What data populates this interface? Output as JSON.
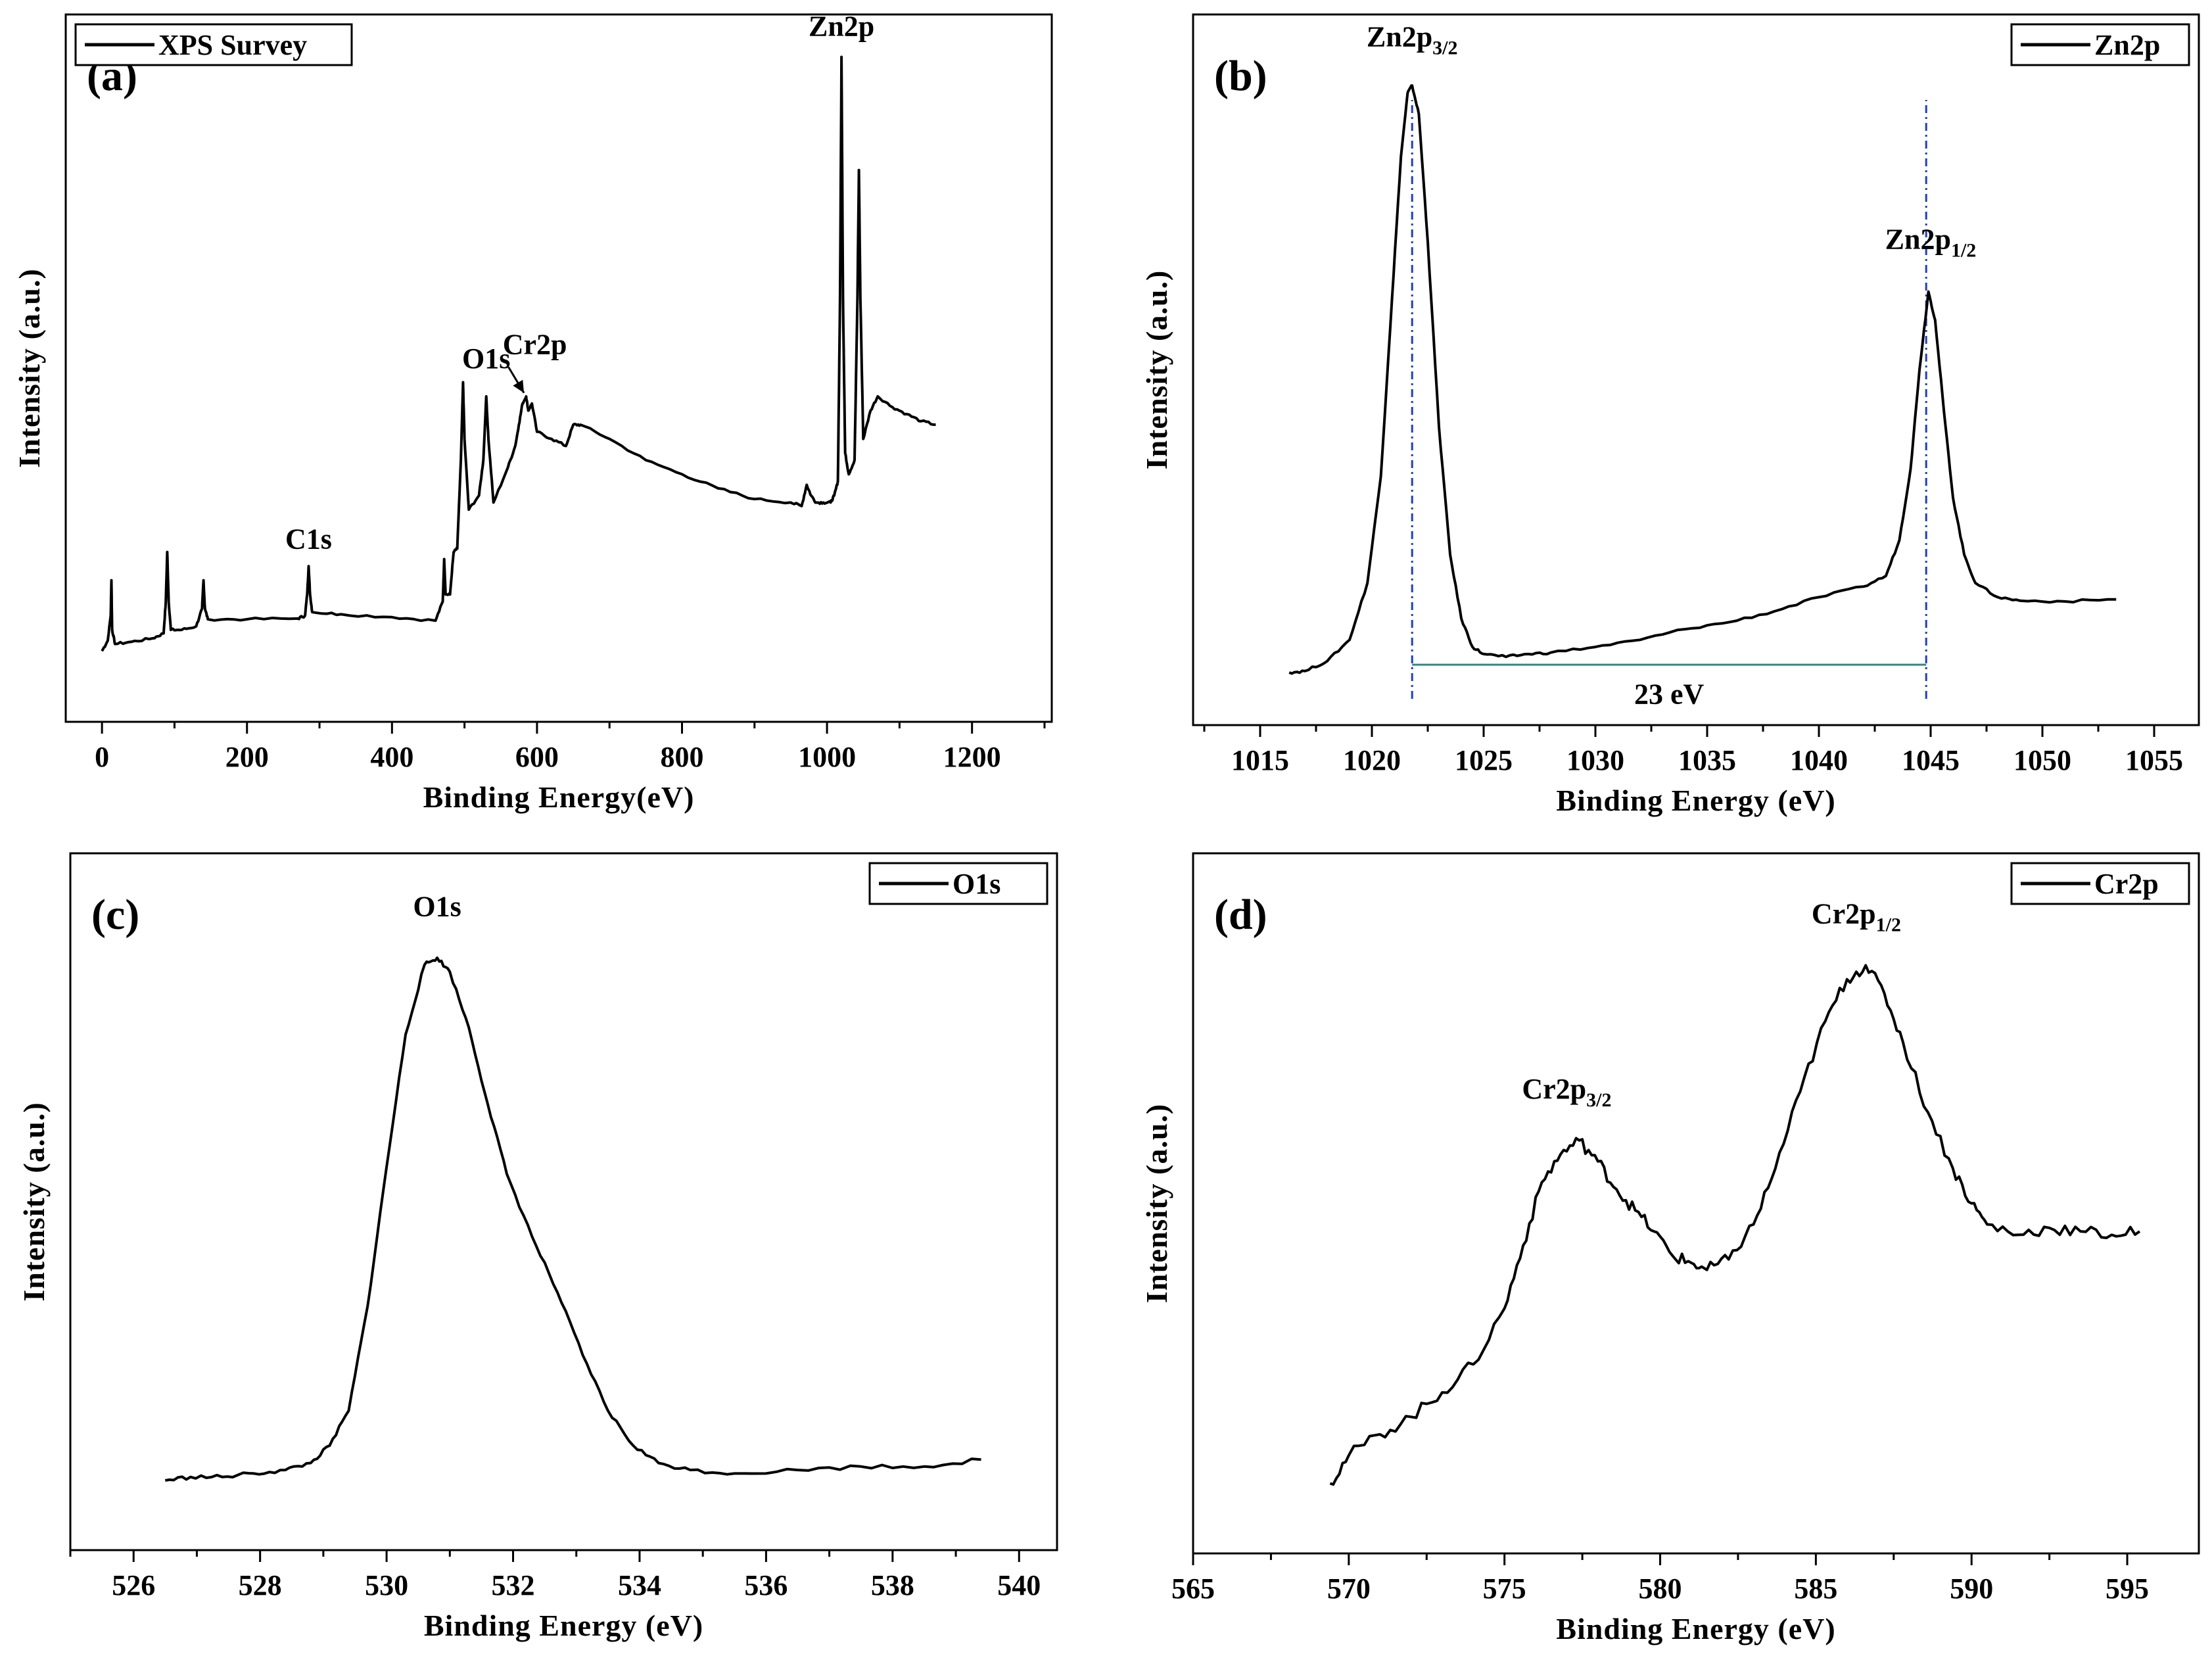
{
  "chart_data": [
    {
      "id": "a",
      "type": "line",
      "panel_label": "(a)",
      "title": "",
      "xlabel": "Binding Energy(eV)",
      "ylabel": "Intensity (a.u.)",
      "xlim": [
        -50,
        1310
      ],
      "ylim": [
        0,
        100
      ],
      "xticks": [
        0,
        200,
        400,
        600,
        800,
        1000,
        1200
      ],
      "legend": {
        "label": "XPS Survey",
        "position": "top-left"
      },
      "series": [
        {
          "name": "XPS Survey",
          "points": [
            [
              0,
              10
            ],
            [
              8,
              11.5
            ],
            [
              12,
              15
            ],
            [
              13,
              20
            ],
            [
              14,
              13
            ],
            [
              18,
              11
            ],
            [
              40,
              11.3
            ],
            [
              70,
              11.8
            ],
            [
              85,
              12.5
            ],
            [
              88,
              17
            ],
            [
              90,
              24
            ],
            [
              92,
              17
            ],
            [
              95,
              13
            ],
            [
              110,
              13
            ],
            [
              130,
              13.5
            ],
            [
              138,
              16
            ],
            [
              140,
              20
            ],
            [
              142,
              16
            ],
            [
              146,
              14.5
            ],
            [
              200,
              14.5
            ],
            [
              270,
              14.6
            ],
            [
              280,
              15
            ],
            [
              283,
              18
            ],
            [
              285,
              22
            ],
            [
              287,
              18
            ],
            [
              290,
              15.5
            ],
            [
              330,
              15.2
            ],
            [
              400,
              14.8
            ],
            [
              460,
              14.3
            ],
            [
              470,
              17
            ],
            [
              472,
              23
            ],
            [
              474,
              18
            ],
            [
              480,
              18
            ],
            [
              485,
              24
            ],
            [
              490,
              24.5
            ],
            [
              495,
              37
            ],
            [
              498,
              48
            ],
            [
              500,
              40
            ],
            [
              506,
              30
            ],
            [
              520,
              32
            ],
            [
              526,
              37
            ],
            [
              530,
              46
            ],
            [
              533,
              40
            ],
            [
              540,
              31
            ],
            [
              560,
              36
            ],
            [
              570,
              39
            ],
            [
              575,
              42
            ],
            [
              580,
              45
            ],
            [
              585,
              46
            ],
            [
              588,
              44
            ],
            [
              593,
              45
            ],
            [
              600,
              41
            ],
            [
              620,
              40
            ],
            [
              640,
              39
            ],
            [
              650,
              42
            ],
            [
              660,
              42
            ],
            [
              700,
              40
            ],
            [
              750,
              37
            ],
            [
              800,
              35
            ],
            [
              850,
              33
            ],
            [
              900,
              31.5
            ],
            [
              950,
              31
            ],
            [
              965,
              30.5
            ],
            [
              972,
              33.5
            ],
            [
              978,
              32
            ],
            [
              985,
              31
            ],
            [
              995,
              31
            ],
            [
              1005,
              31
            ],
            [
              1010,
              32
            ],
            [
              1015,
              34
            ],
            [
              1018,
              60
            ],
            [
              1020,
              94
            ],
            [
              1022,
              60
            ],
            [
              1025,
              38
            ],
            [
              1030,
              35
            ],
            [
              1038,
              37
            ],
            [
              1042,
              60
            ],
            [
              1044,
              78
            ],
            [
              1046,
              60
            ],
            [
              1050,
              40
            ],
            [
              1060,
              44
            ],
            [
              1070,
              46
            ],
            [
              1090,
              44.5
            ],
            [
              1110,
              43.5
            ],
            [
              1130,
              42.5
            ],
            [
              1150,
              42
            ]
          ]
        }
      ],
      "annotations": [
        {
          "text": "Zn2p",
          "x": 1020,
          "y": 97
        },
        {
          "text": "O1s",
          "x": 530,
          "y": 50
        },
        {
          "text": "Cr2p",
          "x": 597,
          "y": 52,
          "arrow_to": [
            582,
            46.5
          ]
        },
        {
          "text": "C1s",
          "x": 285,
          "y": 24.5
        }
      ]
    },
    {
      "id": "b",
      "type": "line",
      "panel_label": "(b)",
      "title": "",
      "xlabel": "Binding Energy (eV)",
      "ylabel": "Intensity (a.u.)",
      "xlim": [
        1012,
        1057
      ],
      "ylim": [
        0,
        100
      ],
      "xticks": [
        1015,
        1020,
        1025,
        1030,
        1035,
        1040,
        1045,
        1050,
        1055
      ],
      "legend": {
        "label": "Zn2p",
        "position": "top-right"
      },
      "series": [
        {
          "name": "Zn2p",
          "points": [
            [
              1016.3,
              7.4
            ],
            [
              1017,
              7.6
            ],
            [
              1018,
              9
            ],
            [
              1019,
              12
            ],
            [
              1019.8,
              20
            ],
            [
              1020.4,
              35
            ],
            [
              1020.9,
              60
            ],
            [
              1021.3,
              80
            ],
            [
              1021.6,
              89
            ],
            [
              1021.8,
              90
            ],
            [
              1022.1,
              86
            ],
            [
              1022.5,
              68
            ],
            [
              1023,
              42
            ],
            [
              1023.5,
              24
            ],
            [
              1024,
              15
            ],
            [
              1024.5,
              11
            ],
            [
              1025,
              10
            ],
            [
              1026,
              9.6
            ],
            [
              1027,
              10
            ],
            [
              1028,
              10.2
            ],
            [
              1030,
              11
            ],
            [
              1032,
              12
            ],
            [
              1034,
              13.5
            ],
            [
              1036,
              14.5
            ],
            [
              1038,
              16
            ],
            [
              1040,
              18
            ],
            [
              1042,
              19.5
            ],
            [
              1043,
              21
            ],
            [
              1043.6,
              26
            ],
            [
              1044.1,
              36
            ],
            [
              1044.5,
              50
            ],
            [
              1044.9,
              61
            ],
            [
              1045.2,
              57
            ],
            [
              1045.6,
              44
            ],
            [
              1046,
              32
            ],
            [
              1046.5,
              24
            ],
            [
              1047,
              20
            ],
            [
              1048,
              18
            ],
            [
              1049,
              17.5
            ],
            [
              1051,
              17.4
            ],
            [
              1053.3,
              17.7
            ]
          ]
        }
      ],
      "annotations": [
        {
          "text": "Zn2p3/2",
          "base": "Zn2p",
          "sub": "3/2",
          "x": 1021.8,
          "y": 95.5
        },
        {
          "text": "Zn2p1/2",
          "base": "Zn2p",
          "sub": "1/2",
          "x": 1045,
          "y": 67
        },
        {
          "text": "23 eV",
          "x": 1033.3,
          "y": 3
        }
      ],
      "reference_lines": [
        {
          "type": "vertical",
          "x": 1021.8,
          "color": "#1f3fbf"
        },
        {
          "type": "vertical",
          "x": 1044.8,
          "color": "#1f3fbf"
        },
        {
          "type": "horizontal",
          "x1": 1021.8,
          "x2": 1044.8,
          "y": 8.5,
          "color": "#2a8a8a"
        }
      ]
    },
    {
      "id": "c",
      "type": "line",
      "panel_label": "(c)",
      "title": "",
      "xlabel": "Binding Energy (eV)",
      "ylabel": "Intensity (a.u.)",
      "xlim": [
        525,
        540.6
      ],
      "ylim": [
        0,
        100
      ],
      "xticks": [
        526,
        528,
        530,
        532,
        534,
        536,
        538,
        540
      ],
      "legend": {
        "label": "O1s",
        "position": "top-right"
      },
      "series": [
        {
          "name": "O1s",
          "points": [
            [
              526.5,
              10
            ],
            [
              526.9,
              10.5
            ],
            [
              527.4,
              10.5
            ],
            [
              527.9,
              11
            ],
            [
              528.4,
              11.5
            ],
            [
              528.8,
              12.5
            ],
            [
              529.1,
              15
            ],
            [
              529.4,
              20
            ],
            [
              529.7,
              35
            ],
            [
              530,
              55
            ],
            [
              530.3,
              74
            ],
            [
              530.6,
              84
            ],
            [
              530.8,
              85
            ],
            [
              531,
              83
            ],
            [
              531.3,
              75
            ],
            [
              531.6,
              64
            ],
            [
              531.9,
              54
            ],
            [
              532.3,
              45
            ],
            [
              532.7,
              37
            ],
            [
              533.1,
              28
            ],
            [
              533.5,
              20
            ],
            [
              533.9,
              15
            ],
            [
              534.3,
              12.5
            ],
            [
              534.8,
              11.5
            ],
            [
              535.5,
              11
            ],
            [
              536.5,
              11.5
            ],
            [
              537.5,
              12
            ],
            [
              538.5,
              12
            ],
            [
              539.4,
              13
            ]
          ]
        }
      ],
      "annotations": [
        {
          "text": "O1s",
          "x": 530.8,
          "y": 91
        }
      ]
    },
    {
      "id": "d",
      "type": "line",
      "panel_label": "(d)",
      "title": "",
      "xlabel": "Binding Energy (eV)",
      "ylabel": "Intensity (a.u.)",
      "xlim": [
        565,
        597.3
      ],
      "ylim": [
        0,
        100
      ],
      "xticks": [
        565,
        570,
        575,
        580,
        585,
        590,
        595
      ],
      "legend": {
        "label": "Cr2p",
        "position": "top-right"
      },
      "series": [
        {
          "name": "Cr2p",
          "points": [
            [
              569.4,
              10
            ],
            [
              570,
              14
            ],
            [
              571,
              17
            ],
            [
              572,
              19.5
            ],
            [
              573,
              23
            ],
            [
              574,
              27
            ],
            [
              575,
              35
            ],
            [
              575.6,
              44
            ],
            [
              576.2,
              53
            ],
            [
              576.8,
              57
            ],
            [
              577.4,
              59
            ],
            [
              578,
              56
            ],
            [
              578.6,
              52
            ],
            [
              579.2,
              49
            ],
            [
              579.8,
              46
            ],
            [
              580.4,
              42.5
            ],
            [
              581,
              41.5
            ],
            [
              581.5,
              40.5
            ],
            [
              582.2,
              42
            ],
            [
              583,
              47
            ],
            [
              583.7,
              55
            ],
            [
              584.5,
              66
            ],
            [
              585.3,
              76
            ],
            [
              586,
              82
            ],
            [
              586.6,
              84
            ],
            [
              587.2,
              80
            ],
            [
              587.8,
              73
            ],
            [
              588.6,
              63
            ],
            [
              589.4,
              55
            ],
            [
              590,
              50
            ],
            [
              590.5,
              47
            ],
            [
              591.5,
              45.5
            ],
            [
              592.5,
              46.5
            ],
            [
              593.5,
              46
            ],
            [
              594.5,
              45.5
            ],
            [
              595.4,
              46
            ]
          ]
        }
      ],
      "annotations": [
        {
          "text": "Cr2p3/2",
          "base": "Cr2p",
          "sub": "3/2",
          "x": 577,
          "y": 65
        },
        {
          "text": "Cr2p1/2",
          "base": "Cr2p",
          "sub": "1/2",
          "x": 586.3,
          "y": 90
        }
      ]
    }
  ]
}
